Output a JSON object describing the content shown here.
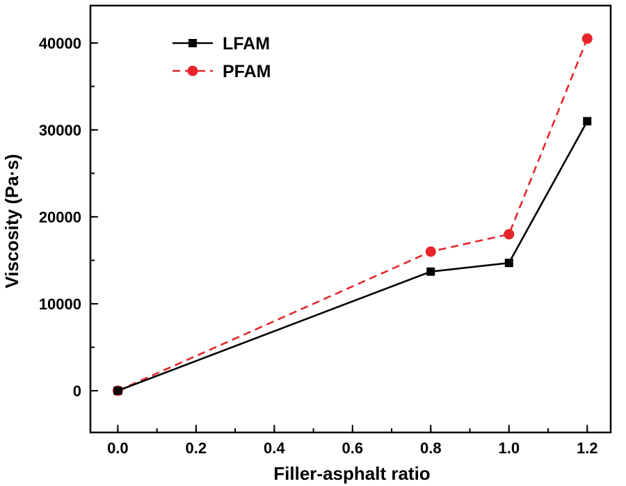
{
  "chart_data": {
    "type": "line",
    "title": "",
    "xlabel": "Filler-asphalt ratio",
    "ylabel": "Viscosity (Pa·s)",
    "x": [
      0.0,
      0.8,
      1.0,
      1.2
    ],
    "series": [
      {
        "name": "LFAM",
        "values": [
          0,
          13700,
          14700,
          31000
        ],
        "color": "#000000",
        "marker": "square",
        "line_style": "solid"
      },
      {
        "name": "PFAM",
        "values": [
          0,
          16000,
          18000,
          40500
        ],
        "color": "#e62429",
        "marker": "circle",
        "line_style": "dashed"
      }
    ],
    "xlim": [
      -0.07,
      1.26
    ],
    "ylim": [
      -4800,
      44300
    ],
    "x_ticks": [
      0.0,
      0.2,
      0.4,
      0.6,
      0.8,
      1.0,
      1.2
    ],
    "x_tick_labels": [
      "0.0",
      "0.2",
      "0.4",
      "0.6",
      "0.8",
      "1.0",
      "1.2"
    ],
    "y_ticks": [
      0,
      10000,
      20000,
      30000,
      40000
    ],
    "y_tick_labels": [
      "0",
      "10000",
      "20000",
      "30000",
      "40000"
    ],
    "x_minor_step": 0.1,
    "y_minor_step": 5000,
    "grid": false,
    "legend_position": "upper-left-inside",
    "frame_color": "#000000"
  }
}
